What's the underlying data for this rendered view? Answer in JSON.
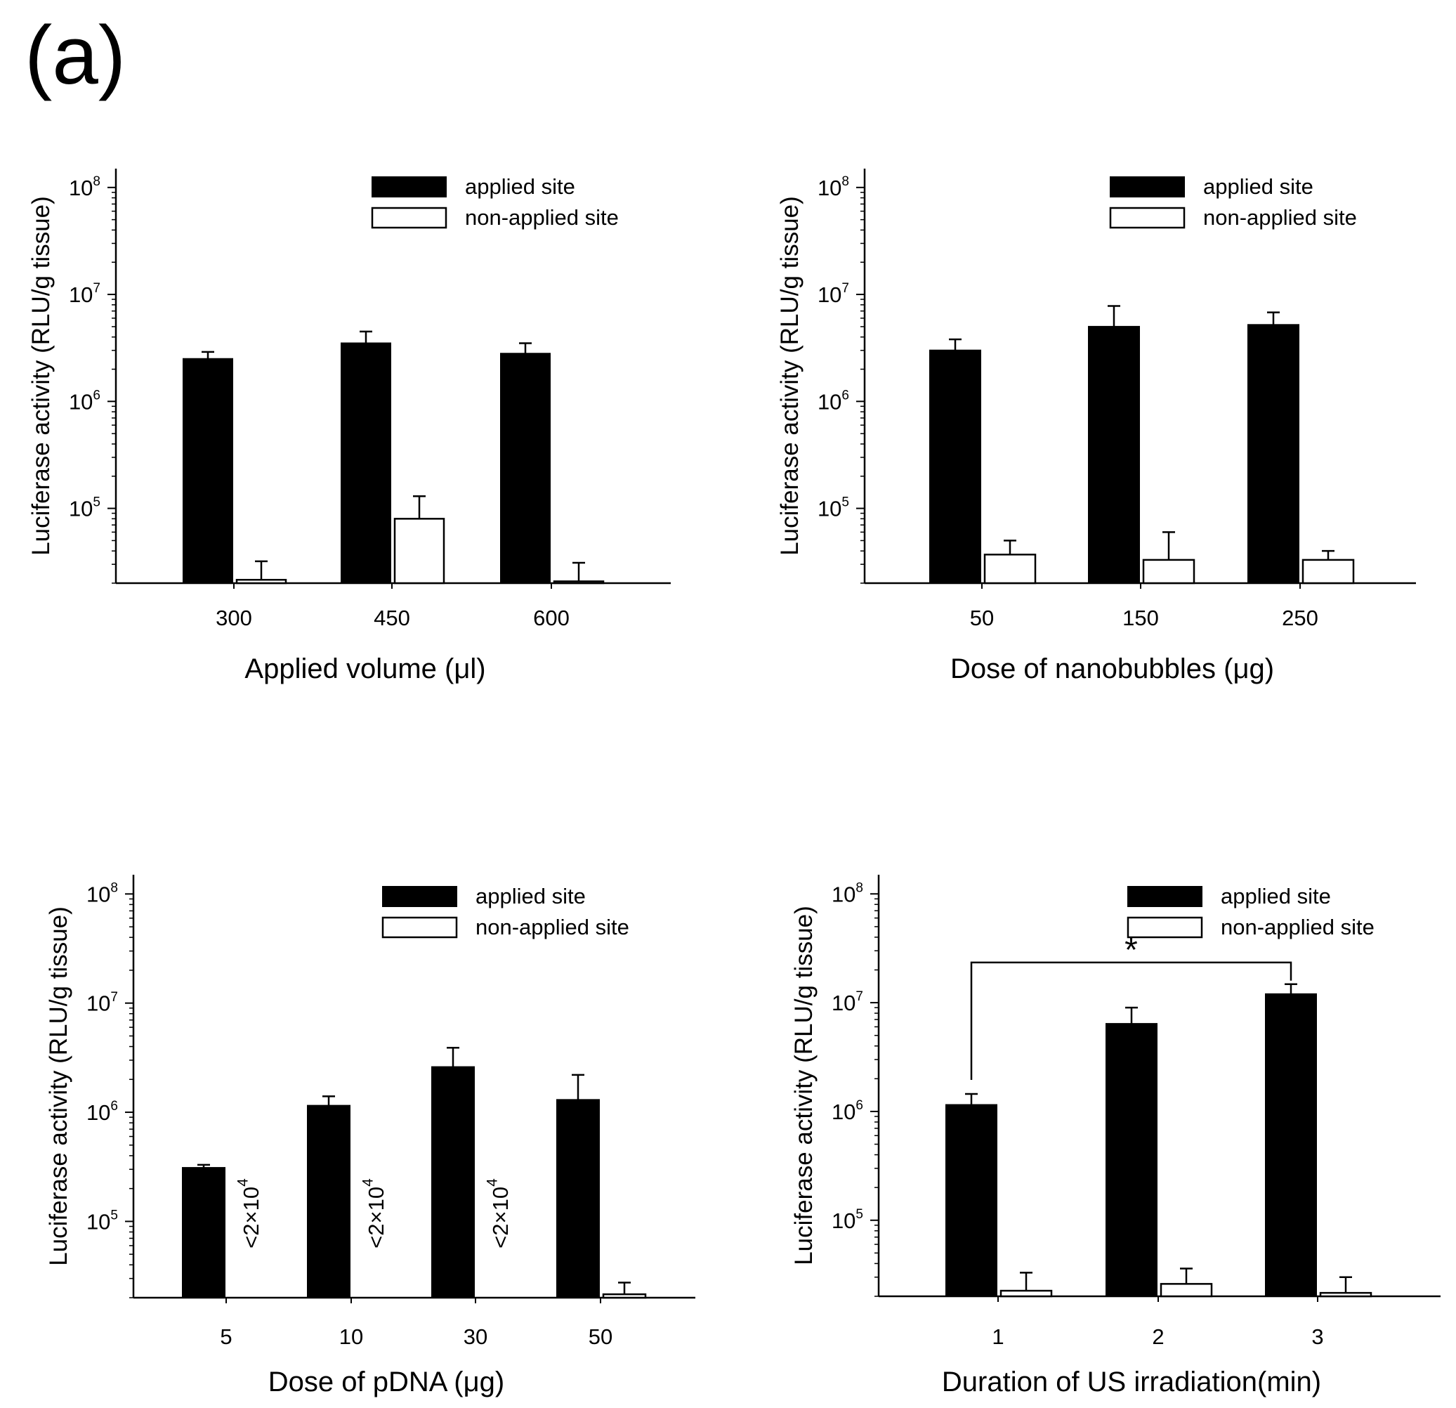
{
  "figure_label": "(a)",
  "colors": {
    "applied": "#000000",
    "non_applied": "#ffffff",
    "stroke": "#000000"
  },
  "chart_data": [
    {
      "type": "bar",
      "scale": "log",
      "xlabel": "Applied volume (μl)",
      "ylabel": "Luciferase activity (RLU/g tissue)",
      "ylim": [
        20000,
        150000000
      ],
      "yticks": [
        {
          "value": 100000,
          "label": "10",
          "exp": "5"
        },
        {
          "value": 1000000,
          "label": "10",
          "exp": "6"
        },
        {
          "value": 10000000,
          "label": "10",
          "exp": "7"
        },
        {
          "value": 100000000,
          "label": "10",
          "exp": "8"
        }
      ],
      "legend": [
        "applied site",
        "non-applied site"
      ],
      "legend_position": "top-right",
      "categories": [
        "300",
        "450",
        "600"
      ],
      "series": [
        {
          "name": "applied site",
          "values": [
            2500000,
            3500000,
            2800000
          ],
          "errors": [
            2900000,
            4500000,
            3500000
          ]
        },
        {
          "name": "non-applied site",
          "values": [
            21500,
            80000,
            20800
          ],
          "errors": [
            32000,
            130000,
            31000
          ]
        }
      ],
      "annotations": [],
      "significance": null
    },
    {
      "type": "bar",
      "scale": "log",
      "xlabel": "Dose of nanobubbles (μg)",
      "ylabel": "Luciferase activity (RLU/g tissue)",
      "ylim": [
        20000,
        150000000
      ],
      "yticks": [
        {
          "value": 100000,
          "label": "10",
          "exp": "5"
        },
        {
          "value": 1000000,
          "label": "10",
          "exp": "6"
        },
        {
          "value": 10000000,
          "label": "10",
          "exp": "7"
        },
        {
          "value": 100000000,
          "label": "10",
          "exp": "8"
        }
      ],
      "legend": [
        "applied site",
        "non-applied site"
      ],
      "legend_position": "top-right",
      "categories": [
        "50",
        "150",
        "250"
      ],
      "series": [
        {
          "name": "applied site",
          "values": [
            3000000,
            5000000,
            5200000
          ],
          "errors": [
            3800000,
            7800000,
            6800000
          ]
        },
        {
          "name": "non-applied site",
          "values": [
            37000,
            33000,
            33000
          ],
          "errors": [
            50000,
            60000,
            40000
          ]
        }
      ],
      "annotations": [],
      "significance": null
    },
    {
      "type": "bar",
      "scale": "log",
      "xlabel": "Dose of pDNA (μg)",
      "ylabel": "Luciferase activity (RLU/g tissue)",
      "ylim": [
        20000,
        150000000
      ],
      "yticks": [
        {
          "value": 100000,
          "label": "10",
          "exp": "5"
        },
        {
          "value": 1000000,
          "label": "10",
          "exp": "6"
        },
        {
          "value": 10000000,
          "label": "10",
          "exp": "7"
        },
        {
          "value": 100000000,
          "label": "10",
          "exp": "8"
        }
      ],
      "legend": [
        "applied site",
        "non-applied site"
      ],
      "legend_position": "top-right",
      "categories": [
        "5",
        "10",
        "30",
        "50"
      ],
      "series": [
        {
          "name": "applied site",
          "values": [
            310000,
            1150000,
            2600000,
            1300000
          ],
          "errors": [
            330000,
            1400000,
            3900000,
            2200000
          ]
        },
        {
          "name": "non-applied site",
          "values": [
            null,
            null,
            null,
            21500
          ],
          "errors": [
            null,
            null,
            null,
            27500
          ]
        }
      ],
      "annotations": [
        {
          "text": "<2×10",
          "exp": "4",
          "category": "5"
        },
        {
          "text": "<2×10",
          "exp": "4",
          "category": "10"
        },
        {
          "text": "<2×10",
          "exp": "4",
          "category": "30"
        }
      ],
      "significance": null
    },
    {
      "type": "bar",
      "scale": "log",
      "xlabel": "Duration of US irradiation(min)",
      "ylabel": "Luciferase activity (RLU/g tissue)",
      "ylim": [
        20000,
        150000000
      ],
      "yticks": [
        {
          "value": 100000,
          "label": "10",
          "exp": "5"
        },
        {
          "value": 1000000,
          "label": "10",
          "exp": "6"
        },
        {
          "value": 10000000,
          "label": "10",
          "exp": "7"
        },
        {
          "value": 100000000,
          "label": "10",
          "exp": "8"
        }
      ],
      "legend": [
        "applied site",
        "non-applied site"
      ],
      "legend_position": "top-right",
      "categories": [
        "1",
        "2",
        "3"
      ],
      "series": [
        {
          "name": "applied site",
          "values": [
            1150000,
            6400000,
            12000000
          ],
          "errors": [
            1450000,
            9000000,
            14800000
          ]
        },
        {
          "name": "non-applied site",
          "values": [
            22500,
            26000,
            21500
          ],
          "errors": [
            33000,
            36000,
            30000
          ]
        }
      ],
      "annotations": [],
      "significance": {
        "text": "*",
        "from": "1",
        "to": "3"
      }
    }
  ]
}
